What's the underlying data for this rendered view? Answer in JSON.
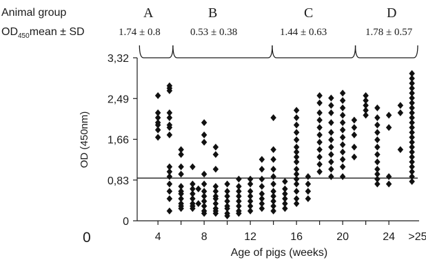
{
  "header": {
    "group_row_label": "Animal group",
    "od_row_label_main": "OD",
    "od_row_label_sub": "450",
    "od_row_label_suffix": "mean ± SD"
  },
  "groups": [
    {
      "letter": "A",
      "stat": "1.74 ± 0.8"
    },
    {
      "letter": "B",
      "stat": "0.53 ± 0.38"
    },
    {
      "letter": "C",
      "stat": "1.44 ± 0.63"
    },
    {
      "letter": "D",
      "stat": "1.78 ± 0.57"
    }
  ],
  "origin_label": "0",
  "chart_data": {
    "type": "scatter",
    "xlabel": "Age of pigs (weeks)",
    "ylabel": "OD (450nm)",
    "x_ticks": [
      "4",
      "8",
      "12",
      "16",
      "20",
      "24",
      ">25"
    ],
    "y_ticks": [
      "0",
      "0,83",
      "1,66",
      "2,49",
      "3,32"
    ],
    "ylim": [
      0,
      3.32
    ],
    "xlim": [
      2.2,
      26.5
    ],
    "cutoff_line": 0.87,
    "group_ranges": [
      {
        "group": "A",
        "from": 2.4,
        "to": 5.3
      },
      {
        "group": "B",
        "from": 5.3,
        "to": 13.9
      },
      {
        "group": "C",
        "from": 13.9,
        "to": 21.1
      },
      {
        "group": "D",
        "from": 21.1,
        "to": 26.5
      }
    ],
    "series": [
      {
        "points": [
          [
            4,
            2.55
          ],
          [
            4,
            2.2
          ],
          [
            4,
            2.1
          ],
          [
            4,
            2.0
          ],
          [
            4,
            1.95
          ],
          [
            4,
            1.85
          ],
          [
            4,
            1.7
          ],
          [
            5,
            2.75
          ],
          [
            5,
            2.7
          ],
          [
            5,
            2.65
          ],
          [
            5,
            2.2
          ],
          [
            5,
            2.1
          ],
          [
            5,
            1.95
          ],
          [
            5,
            1.9
          ],
          [
            5,
            1.75
          ],
          [
            5,
            1.1
          ],
          [
            5,
            1.0
          ],
          [
            5,
            0.9
          ],
          [
            5,
            0.75
          ],
          [
            5,
            0.6
          ],
          [
            5,
            0.45
          ],
          [
            5,
            0.2
          ],
          [
            6,
            1.45
          ],
          [
            6,
            1.35
          ],
          [
            6,
            1.1
          ],
          [
            6,
            0.95
          ],
          [
            6,
            0.7
          ],
          [
            6,
            0.6
          ],
          [
            6,
            0.55
          ],
          [
            6,
            0.45
          ],
          [
            6,
            0.35
          ],
          [
            6,
            0.3
          ],
          [
            6,
            0.25
          ],
          [
            7,
            1.1
          ],
          [
            7,
            0.75
          ],
          [
            7,
            0.65
          ],
          [
            7,
            0.55
          ],
          [
            7,
            0.45
          ],
          [
            7,
            0.35
          ],
          [
            7,
            0.3
          ],
          [
            7,
            0.25
          ],
          [
            7.5,
            0.65
          ],
          [
            7.5,
            0.35
          ],
          [
            8,
            2.0
          ],
          [
            8,
            1.75
          ],
          [
            8,
            1.6
          ],
          [
            8,
            0.95
          ],
          [
            8,
            0.75
          ],
          [
            8,
            0.6
          ],
          [
            8,
            0.5
          ],
          [
            8,
            0.4
          ],
          [
            8,
            0.3
          ],
          [
            8,
            0.2
          ],
          [
            8,
            0.15
          ],
          [
            9,
            1.5
          ],
          [
            9,
            1.35
          ],
          [
            9,
            1.05
          ],
          [
            9,
            0.7
          ],
          [
            9,
            0.6
          ],
          [
            9,
            0.5
          ],
          [
            9,
            0.45
          ],
          [
            9,
            0.35
          ],
          [
            9,
            0.25
          ],
          [
            9,
            0.2
          ],
          [
            9,
            0.15
          ],
          [
            10,
            0.75
          ],
          [
            10,
            0.6
          ],
          [
            10,
            0.5
          ],
          [
            10,
            0.4
          ],
          [
            10,
            0.3
          ],
          [
            10,
            0.25
          ],
          [
            10,
            0.15
          ],
          [
            10,
            0.1
          ],
          [
            11,
            0.85
          ],
          [
            11,
            0.7
          ],
          [
            11,
            0.6
          ],
          [
            11,
            0.5
          ],
          [
            11,
            0.4
          ],
          [
            11,
            0.3
          ],
          [
            11,
            0.2
          ],
          [
            11,
            0.15
          ],
          [
            12,
            0.85
          ],
          [
            12,
            0.75
          ],
          [
            12,
            0.6
          ],
          [
            12,
            0.5
          ],
          [
            12,
            0.4
          ],
          [
            12,
            0.3
          ],
          [
            12,
            0.2
          ],
          [
            13,
            1.25
          ],
          [
            13,
            1.05
          ],
          [
            13,
            0.85
          ],
          [
            13,
            0.7
          ],
          [
            13,
            0.55
          ],
          [
            13,
            0.45
          ],
          [
            13,
            0.35
          ],
          [
            13,
            0.25
          ],
          [
            14,
            2.1
          ],
          [
            14,
            1.45
          ],
          [
            14,
            1.25
          ],
          [
            14,
            1.05
          ],
          [
            14,
            0.9
          ],
          [
            14,
            0.75
          ],
          [
            14,
            0.6
          ],
          [
            14,
            0.5
          ],
          [
            14,
            0.4
          ],
          [
            14,
            0.3
          ],
          [
            14,
            0.2
          ],
          [
            15,
            0.8
          ],
          [
            15,
            0.65
          ],
          [
            15,
            0.55
          ],
          [
            15,
            0.45
          ],
          [
            15,
            0.35
          ],
          [
            15,
            0.25
          ],
          [
            16,
            2.25
          ],
          [
            16,
            2.1
          ],
          [
            16,
            1.95
          ],
          [
            16,
            1.8
          ],
          [
            16,
            1.65
          ],
          [
            16,
            1.5
          ],
          [
            16,
            1.4
          ],
          [
            16,
            1.3
          ],
          [
            16,
            1.2
          ],
          [
            16,
            1.05
          ],
          [
            16,
            0.95
          ],
          [
            16,
            0.85
          ],
          [
            16,
            0.75
          ],
          [
            16,
            0.6
          ],
          [
            16,
            0.45
          ],
          [
            16,
            0.35
          ],
          [
            17,
            0.9
          ],
          [
            17,
            0.75
          ],
          [
            17,
            0.6
          ],
          [
            17,
            0.45
          ],
          [
            18,
            2.55
          ],
          [
            18,
            2.4
          ],
          [
            18,
            2.2
          ],
          [
            18,
            2.05
          ],
          [
            18,
            1.9
          ],
          [
            18,
            1.75
          ],
          [
            18,
            1.6
          ],
          [
            18,
            1.45
          ],
          [
            18,
            1.3
          ],
          [
            18,
            1.15
          ],
          [
            18,
            1.0
          ],
          [
            19,
            2.5
          ],
          [
            19,
            2.35
          ],
          [
            19,
            2.2
          ],
          [
            19,
            2.0
          ],
          [
            19,
            1.8
          ],
          [
            19,
            1.65
          ],
          [
            19,
            1.5
          ],
          [
            19,
            1.35
          ],
          [
            19,
            1.2
          ],
          [
            19,
            1.05
          ],
          [
            19,
            0.9
          ],
          [
            20,
            2.6
          ],
          [
            20,
            2.45
          ],
          [
            20,
            2.3
          ],
          [
            20,
            2.15
          ],
          [
            20,
            2.0
          ],
          [
            20,
            1.85
          ],
          [
            20,
            1.7
          ],
          [
            20,
            1.55
          ],
          [
            20,
            1.4
          ],
          [
            20,
            1.25
          ],
          [
            20,
            1.1
          ],
          [
            20,
            0.9
          ],
          [
            21,
            2.05
          ],
          [
            21,
            1.9
          ],
          [
            21,
            1.75
          ],
          [
            21,
            1.5
          ],
          [
            21,
            1.3
          ],
          [
            22,
            2.55
          ],
          [
            22,
            2.45
          ],
          [
            22,
            2.35
          ],
          [
            22,
            2.25
          ],
          [
            22,
            2.15
          ],
          [
            23,
            2.3
          ],
          [
            23,
            2.1
          ],
          [
            23,
            1.95
          ],
          [
            23,
            1.8
          ],
          [
            23,
            1.65
          ],
          [
            23,
            1.5
          ],
          [
            23,
            1.35
          ],
          [
            23,
            1.2
          ],
          [
            23,
            1.05
          ],
          [
            23,
            0.95
          ],
          [
            23,
            0.85
          ],
          [
            23,
            0.75
          ],
          [
            24,
            2.15
          ],
          [
            24,
            1.9
          ],
          [
            24,
            0.9
          ],
          [
            24,
            0.75
          ],
          [
            25,
            2.35
          ],
          [
            25,
            2.2
          ],
          [
            25,
            1.45
          ],
          [
            26,
            3.0
          ],
          [
            26,
            2.9
          ],
          [
            26,
            2.8
          ],
          [
            26,
            2.7
          ],
          [
            26,
            2.6
          ],
          [
            26,
            2.5
          ],
          [
            26,
            2.4
          ],
          [
            26,
            2.3
          ],
          [
            26,
            2.2
          ],
          [
            26,
            2.1
          ],
          [
            26,
            2.0
          ],
          [
            26,
            1.9
          ],
          [
            26,
            1.8
          ],
          [
            26,
            1.7
          ],
          [
            26,
            1.6
          ],
          [
            26,
            1.5
          ],
          [
            26,
            1.4
          ],
          [
            26,
            1.3
          ],
          [
            26,
            1.2
          ],
          [
            26,
            1.1
          ],
          [
            26,
            1.0
          ],
          [
            26,
            0.9
          ],
          [
            26,
            0.8
          ]
        ]
      }
    ]
  }
}
